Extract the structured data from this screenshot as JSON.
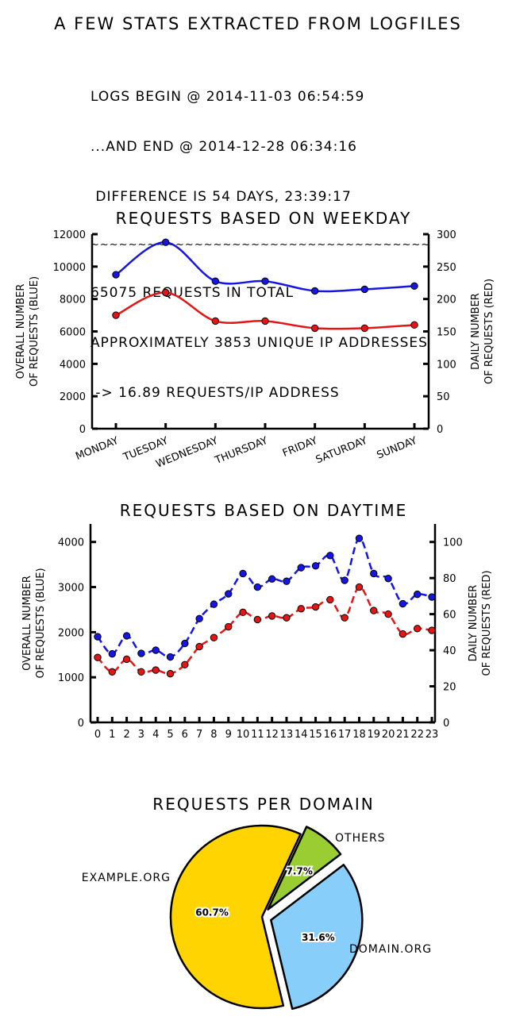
{
  "title": "A FEW STATS EXTRACTED FROM LOGFILES",
  "stats": {
    "line1": "LOGS BEGIN @ 2014-11-03 06:54:59",
    "line2": "...AND END @ 2014-12-28 06:34:16",
    "line3": " DIFFERENCE IS 54 DAYS, 23:39:17",
    "separator": "~~~~~~~~~~~~~~~~~~~~~~~~~~~~~~~~~~~~",
    "line4": "65075 REQUESTS IN TOTAL",
    "line5": "APPROXIMATELY 3853 UNIQUE IP ADDRESSES",
    "line6": " -> 16.89 REQUESTS/IP ADDRESS"
  },
  "colors": {
    "blue": "#1515e6",
    "red": "#e61515",
    "pie_yellow": "#ffd400",
    "pie_blue": "#87cefa",
    "pie_green": "#9acd32"
  },
  "chart_data": [
    {
      "type": "line",
      "title": "REQUESTS BASED ON WEEKDAY",
      "categories": [
        "MONDAY",
        "TUESDAY",
        "WEDNESDAY",
        "THURSDAY",
        "FRIDAY",
        "SATURDAY",
        "SUNDAY"
      ],
      "ylabel": [
        "OVERALL NUMBER",
        "OF REQUESTS (BLUE)"
      ],
      "y2label": [
        "DAILY NUMBER",
        "OF REQUESTS (RED)"
      ],
      "ylim": [
        0,
        12000
      ],
      "y2lim": [
        0,
        300
      ],
      "yticks": [
        "0",
        "2000",
        "4000",
        "6000",
        "8000",
        "10000",
        "12000"
      ],
      "y2ticks": [
        "0",
        "50",
        "100",
        "150",
        "200",
        "250",
        "300"
      ],
      "series": [
        {
          "name": "overall",
          "axis": "left",
          "color": "blue",
          "values": [
            9500,
            11500,
            9100,
            9100,
            8500,
            8600,
            8800
          ]
        },
        {
          "name": "daily",
          "axis": "right",
          "color": "red",
          "values": [
            175,
            210,
            166,
            166,
            155,
            155,
            160
          ]
        }
      ]
    },
    {
      "type": "line",
      "title": "REQUESTS BASED ON DAYTIME",
      "categories": [
        "0",
        "1",
        "2",
        "3",
        "4",
        "5",
        "6",
        "7",
        "8",
        "9",
        "10",
        "11",
        "12",
        "13",
        "14",
        "15",
        "16",
        "17",
        "18",
        "19",
        "20",
        "21",
        "22",
        "23"
      ],
      "ylabel": [
        "OVERALL NUMBER",
        "OF REQUESTS (BLUE)"
      ],
      "y2label": [
        "DAILY NUMBER",
        "OF REQUESTS (RED)"
      ],
      "ylim": [
        0,
        4400
      ],
      "y2lim": [
        0,
        110
      ],
      "yticks": [
        "0",
        "1000",
        "2000",
        "3000",
        "4000"
      ],
      "y2ticks": [
        "0",
        "20",
        "40",
        "60",
        "80",
        "100"
      ],
      "series": [
        {
          "name": "overall",
          "axis": "left",
          "color": "blue",
          "values": [
            1900,
            1520,
            1920,
            1530,
            1600,
            1450,
            1750,
            2300,
            2620,
            2850,
            3300,
            3000,
            3180,
            3130,
            3430,
            3470,
            3700,
            3150,
            4080,
            3300,
            3190,
            2630,
            2840,
            2780
          ]
        },
        {
          "name": "daily",
          "axis": "right",
          "color": "red",
          "values": [
            36,
            28,
            35,
            28,
            29,
            27,
            32,
            42,
            47,
            53,
            61,
            57,
            59,
            58,
            63,
            64,
            68,
            58,
            75,
            62,
            60,
            49,
            52,
            51
          ]
        }
      ]
    },
    {
      "type": "pie",
      "title": "REQUESTS PER DOMAIN",
      "slices": [
        {
          "label": "EXAMPLE.ORG",
          "value": 60.7,
          "display": "60.7%",
          "color": "pie_yellow"
        },
        {
          "label": "DOMAIN.ORG",
          "value": 31.6,
          "display": "31.6%",
          "color": "pie_blue"
        },
        {
          "label": "OTHERS",
          "value": 7.7,
          "display": "7.7%",
          "color": "pie_green"
        }
      ]
    }
  ]
}
